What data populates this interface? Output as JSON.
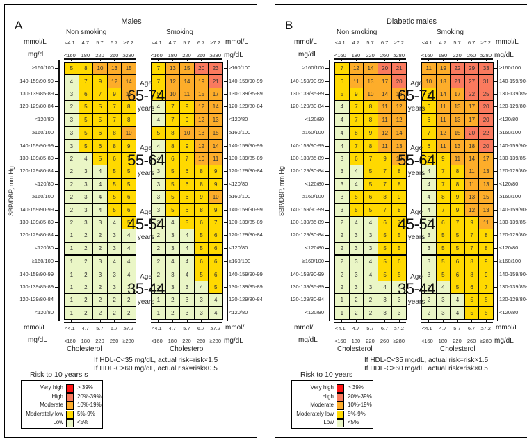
{
  "colors": {
    "very_high": "#ff1111",
    "high": "#fa7a5e",
    "moderate": "#fdad2a",
    "moderately_low": "#ffd900",
    "low": "#eaf6c6"
  },
  "chart_data": [
    {
      "type": "heatmap",
      "panel_letter": "A",
      "title": "Males",
      "y_axis_label": "SBP/DBP, mm Hg",
      "x_axis_label": "Cholesterol",
      "columns_mmol": [
        "<4.1",
        "4.7",
        "5.7",
        "6.7",
        "≥7.2"
      ],
      "columns_mgdl": [
        "<160",
        "180",
        "220",
        "260",
        "≥280"
      ],
      "unit_mmol": "mmol/L",
      "unit_mgdl": "mg/dL",
      "rows": [
        "≥160/100",
        "140-159/90-99",
        "130-139/85-89",
        "120-129/80-84",
        "<120/80"
      ],
      "groups": [
        "Non smoking",
        "Smoking"
      ],
      "age_label": "Age",
      "years_label": "years",
      "ages": [
        {
          "age": "65-74",
          "non_smoking": [
            [
              5,
              8,
              10,
              13,
              15
            ],
            [
              4,
              7,
              9,
              12,
              14
            ],
            [
              3,
              6,
              7,
              9,
              13
            ],
            [
              2,
              5,
              5,
              7,
              8
            ],
            [
              3,
              5,
              5,
              7,
              8
            ]
          ],
          "smoking": [
            [
              7,
              13,
              15,
              20,
              23
            ],
            [
              7,
              12,
              14,
              19,
              21
            ],
            [
              5,
              10,
              11,
              15,
              17
            ],
            [
              4,
              7,
              9,
              12,
              14
            ],
            [
              4,
              7,
              9,
              12,
              13
            ]
          ]
        },
        {
          "age": "55-64",
          "non_smoking": [
            [
              3,
              5,
              6,
              8,
              10
            ],
            [
              3,
              5,
              6,
              8,
              9
            ],
            [
              2,
              4,
              5,
              6,
              7
            ],
            [
              2,
              3,
              4,
              5,
              5
            ],
            [
              2,
              3,
              4,
              5,
              5
            ]
          ],
          "smoking": [
            [
              5,
              8,
              10,
              13,
              15
            ],
            [
              4,
              8,
              9,
              12,
              14
            ],
            [
              4,
              6,
              7,
              10,
              11
            ],
            [
              3,
              5,
              6,
              8,
              9
            ],
            [
              3,
              5,
              6,
              8,
              9
            ]
          ]
        },
        {
          "age": "45-54",
          "non_smoking": [
            [
              2,
              3,
              4,
              5,
              6
            ],
            [
              2,
              3,
              4,
              5,
              6
            ],
            [
              2,
              3,
              3,
              4,
              5
            ],
            [
              1,
              2,
              2,
              3,
              4
            ],
            [
              1,
              2,
              2,
              3,
              4
            ]
          ],
          "smoking": [
            [
              3,
              5,
              6,
              9,
              10
            ],
            [
              3,
              5,
              6,
              8,
              9
            ],
            [
              2,
              4,
              5,
              6,
              7
            ],
            [
              2,
              3,
              4,
              5,
              6
            ],
            [
              2,
              3,
              4,
              5,
              6
            ]
          ]
        },
        {
          "age": "35-44",
          "non_smoking": [
            [
              1,
              2,
              3,
              4,
              4
            ],
            [
              1,
              2,
              3,
              3,
              4
            ],
            [
              1,
              2,
              2,
              3,
              3
            ],
            [
              1,
              2,
              2,
              2,
              2
            ],
            [
              1,
              2,
              2,
              2,
              2
            ]
          ],
          "smoking": [
            [
              2,
              4,
              4,
              6,
              6
            ],
            [
              2,
              3,
              4,
              5,
              6
            ],
            [
              2,
              3,
              3,
              4,
              5
            ],
            [
              1,
              2,
              3,
              3,
              4
            ],
            [
              1,
              2,
              3,
              3,
              4
            ]
          ]
        }
      ],
      "notes": [
        "If HDL-C<35 mg/dL, actual risk=risk×1.5",
        "If HDL-C≥60 mg/dL, actual risk=risk×0.5"
      ],
      "legend_title": "Risk to 10 years s",
      "legend": [
        {
          "label": "Very high",
          "range": "> 39%",
          "color_key": "very_high"
        },
        {
          "label": "High",
          "range": "20%-39%",
          "color_key": "high"
        },
        {
          "label": "Moderate",
          "range": "10%-19%",
          "color_key": "moderate"
        },
        {
          "label": "Moderately low",
          "range": "5%-9%",
          "color_key": "moderately_low"
        },
        {
          "label": "Low",
          "range": "<5%",
          "color_key": "low"
        }
      ]
    },
    {
      "type": "heatmap",
      "panel_letter": "B",
      "title": "Diabetic males",
      "y_axis_label": "SBP/DBP, mm Hg",
      "x_axis_label": "Cholesterol",
      "columns_mmol": [
        "<4.1",
        "4.7",
        "5.7",
        "6.7",
        "≥7.2"
      ],
      "columns_mgdl": [
        "<160",
        "180",
        "220",
        "260",
        "≥280"
      ],
      "unit_mmol": "mmol/L",
      "unit_mgdl": "mg/dL",
      "rows": [
        "≥160/100",
        "140-159/90-99",
        "130-139/85-89",
        "120-129/80-84",
        "<120/80"
      ],
      "groups": [
        "Non smoking",
        "Smoking"
      ],
      "age_label": "Age",
      "years_label": "years",
      "ages": [
        {
          "age": "65-74",
          "non_smoking": [
            [
              7,
              12,
              14,
              20,
              21
            ],
            [
              6,
              11,
              13,
              17,
              20
            ],
            [
              5,
              9,
              10,
              14,
              16
            ],
            [
              4,
              7,
              8,
              11,
              12
            ],
            [
              4,
              7,
              8,
              11,
              12
            ]
          ],
          "smoking": [
            [
              11,
              19,
              22,
              29,
              33
            ],
            [
              10,
              18,
              21,
              27,
              31
            ],
            [
              8,
              14,
              17,
              22,
              25
            ],
            [
              6,
              11,
              13,
              17,
              20
            ],
            [
              6,
              11,
              13,
              17,
              20
            ]
          ]
        },
        {
          "age": "55-64",
          "non_smoking": [
            [
              4,
              8,
              9,
              12,
              14
            ],
            [
              4,
              7,
              8,
              11,
              13
            ],
            [
              3,
              6,
              7,
              9,
              10
            ],
            [
              3,
              4,
              5,
              7,
              8
            ],
            [
              3,
              4,
              5,
              7,
              8
            ]
          ],
          "smoking": [
            [
              7,
              12,
              15,
              20,
              22
            ],
            [
              6,
              11,
              13,
              18,
              20
            ],
            [
              5,
              9,
              11,
              14,
              17
            ],
            [
              4,
              7,
              8,
              11,
              13
            ],
            [
              4,
              7,
              8,
              11,
              13
            ]
          ]
        },
        {
          "age": "45-54",
          "non_smoking": [
            [
              3,
              5,
              6,
              8,
              9
            ],
            [
              3,
              5,
              5,
              7,
              8
            ],
            [
              2,
              4,
              4,
              6,
              7
            ],
            [
              2,
              3,
              3,
              5,
              5
            ],
            [
              2,
              3,
              3,
              5,
              5
            ]
          ],
          "smoking": [
            [
              4,
              8,
              9,
              13,
              15
            ],
            [
              4,
              7,
              9,
              12,
              13
            ],
            [
              3,
              6,
              7,
              9,
              11
            ],
            [
              3,
              5,
              5,
              7,
              8
            ],
            [
              3,
              5,
              5,
              7,
              8
            ]
          ]
        },
        {
          "age": "35-44",
          "non_smoking": [
            [
              2,
              3,
              4,
              5,
              6
            ],
            [
              2,
              3,
              4,
              5,
              5
            ],
            [
              2,
              3,
              3,
              4,
              4
            ],
            [
              1,
              2,
              2,
              3,
              3
            ],
            [
              1,
              2,
              2,
              3,
              3
            ]
          ],
          "smoking": [
            [
              3,
              5,
              6,
              8,
              9
            ],
            [
              3,
              5,
              6,
              8,
              9
            ],
            [
              2,
              4,
              5,
              6,
              7
            ],
            [
              2,
              3,
              4,
              5,
              5
            ],
            [
              2,
              3,
              4,
              5,
              5
            ]
          ]
        }
      ],
      "notes": [
        "If HDL-C<35 mg/dL, actual risk=risk×1.5",
        "If HDL-C≥60 mg/dL, actual risk=risk×0.5"
      ],
      "legend_title": "Risk to 10 years",
      "legend": [
        {
          "label": "Very high",
          "range": "> 39%",
          "color_key": "very_high"
        },
        {
          "label": "High",
          "range": "20%-39%",
          "color_key": "high"
        },
        {
          "label": "Moderate",
          "range": "10%-19%",
          "color_key": "moderate"
        },
        {
          "label": "Moderately low",
          "range": "5%-9%",
          "color_key": "moderately_low"
        },
        {
          "label": "Low",
          "range": "<5%",
          "color_key": "low"
        }
      ]
    }
  ]
}
